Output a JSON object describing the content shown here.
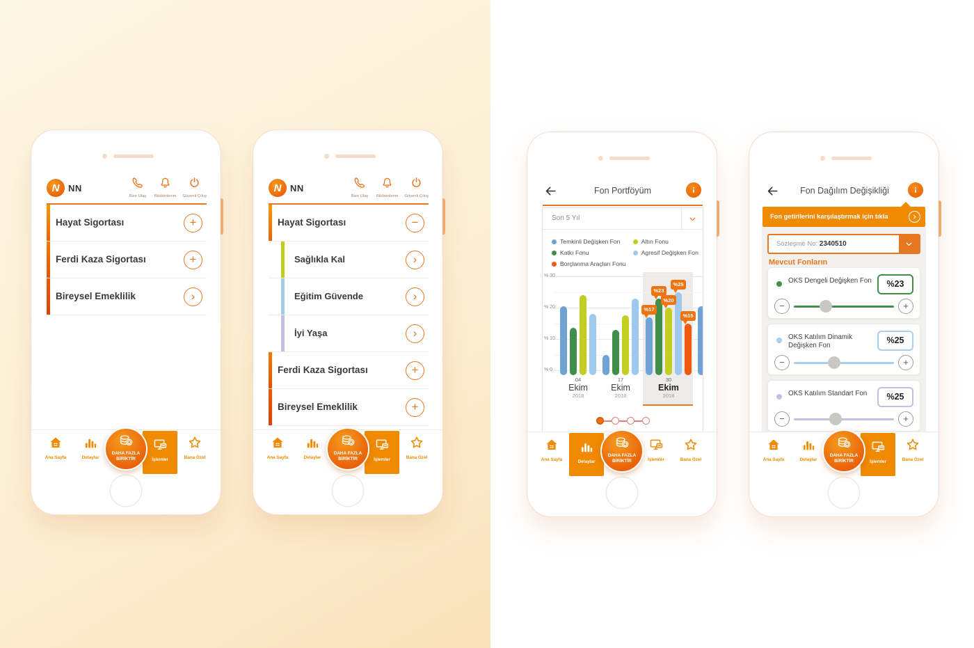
{
  "background": {
    "left_gradient": [
      "#fdf7e6",
      "#f9e3bd"
    ],
    "right_color": "#ffffff"
  },
  "brand": {
    "name": "NN",
    "primary_orange": "#EA650D",
    "secondary_orange": "#F08A00"
  },
  "app_header": {
    "logo_text": "NN",
    "icons": [
      {
        "icon": "phone-icon",
        "label": "Bize Ulaş"
      },
      {
        "icon": "bell-icon",
        "label": "Bildirimlerim"
      },
      {
        "icon": "power-icon",
        "label": "Güvenli Çıkış"
      }
    ]
  },
  "bottom_nav": {
    "items": [
      {
        "icon": "home-icon",
        "label": "Ana Sayfa"
      },
      {
        "icon": "bar-chart-icon",
        "label": "Detaylar"
      },
      {
        "icon": "coins-icon",
        "label": "DAHA FAZLA BİRİKTİR",
        "label_line1": "DAHA FAZLA",
        "label_line2": "BİRİKTİR"
      },
      {
        "icon": "transactions-icon",
        "label": "İşlemler"
      },
      {
        "icon": "star-icon",
        "label": "Bana Özel"
      }
    ]
  },
  "phone1": {
    "menu": [
      {
        "label": "Hayat Sigortası",
        "action": "plus",
        "bar_top": "#F49B00",
        "bar_bottom": "#EA650D",
        "indent": false
      },
      {
        "label": "Ferdi Kaza Sigortası",
        "action": "plus",
        "bar_top": "#F07C00",
        "bar_bottom": "#E55300",
        "indent": false
      },
      {
        "label": "Bireysel Emeklilik",
        "action": "chevron",
        "bar_top": "#EE5A00",
        "bar_bottom": "#D94405",
        "indent": false
      }
    ],
    "active_nav": 3
  },
  "phone2": {
    "menu": [
      {
        "label": "Hayat Sigortası",
        "action": "minus",
        "bar_top": "#F49B00",
        "bar_bottom": "#EA650D",
        "indent": false
      },
      {
        "label": "Sağlıkla Kal",
        "action": "chevron",
        "bar_top": "#C0CC1F",
        "bar_bottom": "#C0CC1F",
        "indent": true
      },
      {
        "label": "Eğitim Güvende",
        "action": "chevron",
        "bar_top": "#A5CBEA",
        "bar_bottom": "#A5CBEA",
        "indent": true
      },
      {
        "label": "İyi Yaşa",
        "action": "chevron",
        "bar_top": "#C3BFDF",
        "bar_bottom": "#C3BFDF",
        "indent": true
      },
      {
        "label": "Ferdi Kaza Sigortası",
        "action": "plus",
        "bar_top": "#F07C00",
        "bar_bottom": "#E55300",
        "indent": false
      },
      {
        "label": "Bireysel Emeklilik",
        "action": "plus",
        "bar_top": "#EE5A00",
        "bar_bottom": "#D94405",
        "indent": false
      }
    ],
    "active_nav": 3
  },
  "phone3": {
    "title": "Fon Portföyüm",
    "period_dropdown": {
      "value": "Son 5 Yıl"
    },
    "legend": [
      {
        "label": "Temkinli Değişken Fon",
        "color": "#6FA3D6"
      },
      {
        "label": "Katkı Fonu",
        "color": "#3F8F4B"
      },
      {
        "label": "Borçlanma Araçları Fonu",
        "color": "#EE5B0F"
      },
      {
        "label": "Altın Fonu",
        "color": "#C2CE21"
      },
      {
        "label": "Agresif Değişken Fon",
        "color": "#9FC9EC"
      }
    ],
    "chart_data": {
      "type": "bar",
      "title": "Fon Portföyüm",
      "period": "Son 5 Yıl",
      "ylabel": "%",
      "ylim": [
        0,
        30
      ],
      "yticks": [
        30,
        20,
        10,
        0
      ],
      "ytick_labels": [
        "% 30",
        "% 20",
        "% 10",
        "% 0"
      ],
      "grid": true,
      "legend_position": "top",
      "categories": [
        [
          "04",
          "Ekim",
          "2018"
        ],
        [
          "17",
          "Ekim",
          "2018"
        ],
        [
          "30",
          "Ekim",
          "2018"
        ]
      ],
      "selected_group": 2,
      "series": [
        {
          "name": "Temkinli Değişken Fon",
          "color": "#6FA3D6",
          "values": [
            20.5,
            5,
            17
          ]
        },
        {
          "name": "Katkı Fonu",
          "color": "#3F8F4B",
          "values": [
            13.5,
            13,
            23
          ]
        },
        {
          "name": "Altın Fonu",
          "color": "#C2CE21",
          "values": [
            24,
            17.5,
            20
          ]
        },
        {
          "name": "Agresif Değişken Fon",
          "color": "#9FC9EC",
          "values": [
            18,
            23,
            25
          ]
        },
        {
          "name": "Borçlanma Araçları Fonu",
          "color": "#EE5B0F",
          "values": [
            null,
            null,
            15
          ]
        }
      ],
      "selected_labels": [
        "%17",
        "%23",
        "%20",
        "%25",
        "%15"
      ],
      "partial_next_bar": {
        "series": "Temkinli Değişken Fon",
        "color": "#6FA3D6",
        "value": 20.5
      }
    },
    "pagination": {
      "total": 4,
      "active_index": 0
    },
    "active_nav": 1
  },
  "phone4": {
    "title": "Fon Dağılım Değişikliği",
    "banner": {
      "text": "Fon getirilerini karşılaştırmak için tıkla",
      "icon": "chevron-right-icon"
    },
    "contract": {
      "label": "Sözleşme No:",
      "value": "2340510"
    },
    "section_title": "Mevcut Fonların",
    "funds": [
      {
        "name": "OKS Dengeli Değişken Fon",
        "value": "%23",
        "color": "#3F8F4B",
        "thumb_percent": 32
      },
      {
        "name": "OKS Katılım Dinamik Değişken Fon",
        "value": "%25",
        "color": "#A8CEF0",
        "thumb_percent": 40
      },
      {
        "name": "OKS Katılım Standart Fon",
        "value": "%25",
        "color": "#C3BFE2",
        "thumb_percent": 42
      }
    ],
    "active_nav": 3
  }
}
